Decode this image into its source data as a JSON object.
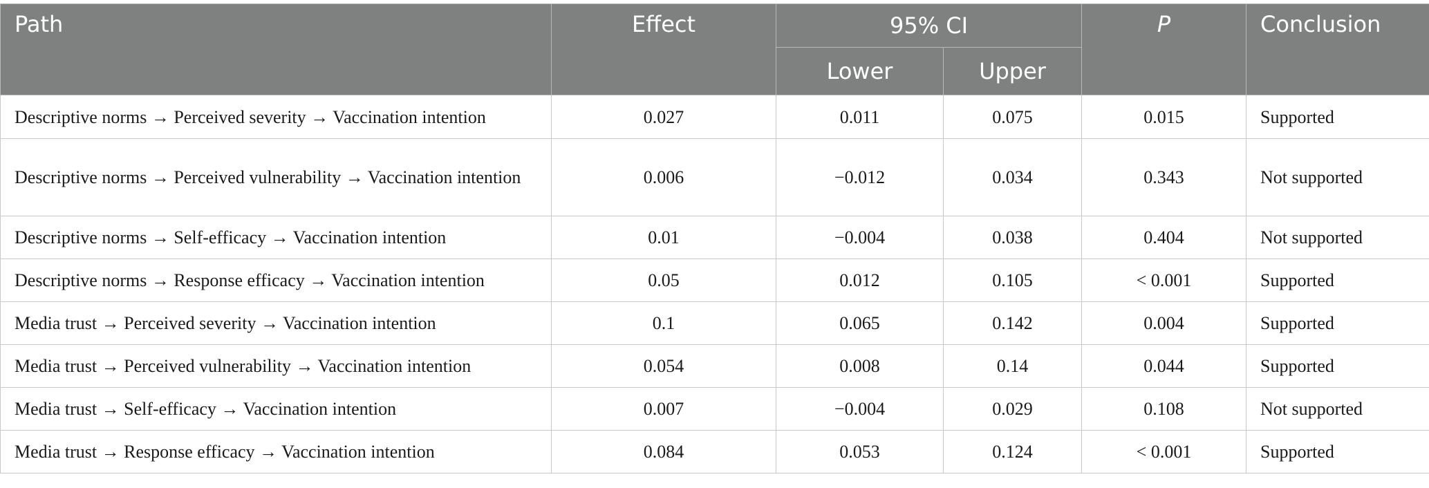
{
  "header": {
    "path": "Path",
    "effect": "Effect",
    "ci": "95% CI",
    "lower": "Lower",
    "upper": "Upper",
    "p": "P",
    "conclusion": "Conclusion"
  },
  "rows": [
    {
      "path": "Descriptive norms → Perceived severity → Vaccination intention",
      "effect": "0.027",
      "lower": "0.011",
      "upper": "0.075",
      "p": "0.015",
      "conclusion": "Supported"
    },
    {
      "path": "Descriptive norms → Perceived vulnerability → Vaccination intention",
      "effect": "0.006",
      "lower": "−0.012",
      "upper": "0.034",
      "p": "0.343",
      "conclusion": "Not supported"
    },
    {
      "path": "Descriptive norms → Self-efficacy → Vaccination intention",
      "effect": "0.01",
      "lower": "−0.004",
      "upper": "0.038",
      "p": "0.404",
      "conclusion": "Not supported"
    },
    {
      "path": "Descriptive norms → Response efficacy → Vaccination intention",
      "effect": "0.05",
      "lower": "0.012",
      "upper": "0.105",
      "p": "< 0.001",
      "conclusion": "Supported"
    },
    {
      "path": "Media trust → Perceived severity → Vaccination intention",
      "effect": "0.1",
      "lower": "0.065",
      "upper": "0.142",
      "p": "0.004",
      "conclusion": "Supported"
    },
    {
      "path": "Media trust → Perceived vulnerability → Vaccination intention",
      "effect": "0.054",
      "lower": "0.008",
      "upper": "0.14",
      "p": "0.044",
      "conclusion": "Supported"
    },
    {
      "path": "Media trust → Self-efficacy → Vaccination intention",
      "effect": "0.007",
      "lower": "−0.004",
      "upper": "0.029",
      "p": "0.108",
      "conclusion": "Not supported"
    },
    {
      "path": "Media trust → Response efficacy → Vaccination intention",
      "effect": "0.084",
      "lower": "0.053",
      "upper": "0.124",
      "p": "< 0.001",
      "conclusion": "Supported"
    }
  ]
}
